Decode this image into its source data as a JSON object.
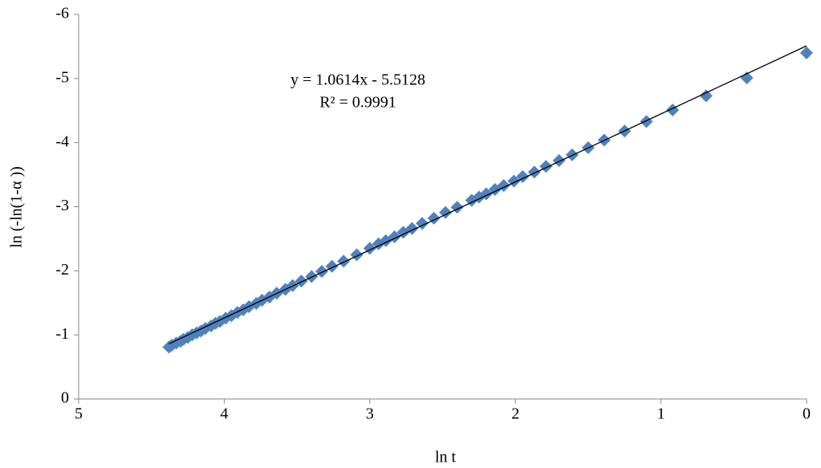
{
  "chart_data": {
    "type": "scatter",
    "x_label": "ln t",
    "y_label": "ln (-ln(1-α ))",
    "annotations": [
      "y = 1.0614x - 5.5128",
      "R² = 0.9991"
    ],
    "xlim": [
      5,
      0
    ],
    "xticks": [
      5,
      4,
      3,
      2,
      1,
      0
    ],
    "ylim": [
      0,
      -6
    ],
    "yticks": [
      0,
      -1,
      -2,
      -3,
      -4,
      -5,
      -6
    ],
    "grid": false,
    "series": [
      {
        "color": "#4f81bd",
        "marker": "diamond",
        "x": [
          0,
          0.41,
          0.69,
          0.92,
          1.1,
          1.25,
          1.39,
          1.5,
          1.61,
          1.7,
          1.79,
          1.87,
          1.95,
          2.01,
          2.08,
          2.14,
          2.2,
          2.25,
          2.3,
          2.4,
          2.48,
          2.56,
          2.64,
          2.71,
          2.77,
          2.83,
          2.89,
          2.94,
          3.0,
          3.09,
          3.18,
          3.26,
          3.33,
          3.4,
          3.47,
          3.53,
          3.58,
          3.64,
          3.69,
          3.74,
          3.78,
          3.83,
          3.87,
          3.91,
          3.95,
          3.99,
          4.03,
          4.06,
          4.09,
          4.13,
          4.16,
          4.19,
          4.22,
          4.25,
          4.28,
          4.3,
          4.33,
          4.36,
          4.38
        ],
        "values": [
          -5.4,
          -5.01,
          -4.73,
          -4.51,
          -4.33,
          -4.18,
          -4.04,
          -3.92,
          -3.81,
          -3.72,
          -3.63,
          -3.54,
          -3.47,
          -3.4,
          -3.33,
          -3.27,
          -3.2,
          -3.15,
          -3.1,
          -2.99,
          -2.91,
          -2.82,
          -2.74,
          -2.66,
          -2.6,
          -2.53,
          -2.47,
          -2.42,
          -2.35,
          -2.25,
          -2.15,
          -2.07,
          -1.99,
          -1.91,
          -1.84,
          -1.77,
          -1.71,
          -1.65,
          -1.59,
          -1.54,
          -1.49,
          -1.44,
          -1.39,
          -1.35,
          -1.3,
          -1.26,
          -1.21,
          -1.18,
          -1.14,
          -1.1,
          -1.06,
          -1.03,
          -1.0,
          -0.96,
          -0.93,
          -0.9,
          -0.87,
          -0.84,
          -0.81
        ]
      }
    ],
    "trendline": {
      "color": "#000000",
      "x": [
        4.38,
        0
      ],
      "values": [
        -0.86,
        -5.51
      ]
    }
  }
}
